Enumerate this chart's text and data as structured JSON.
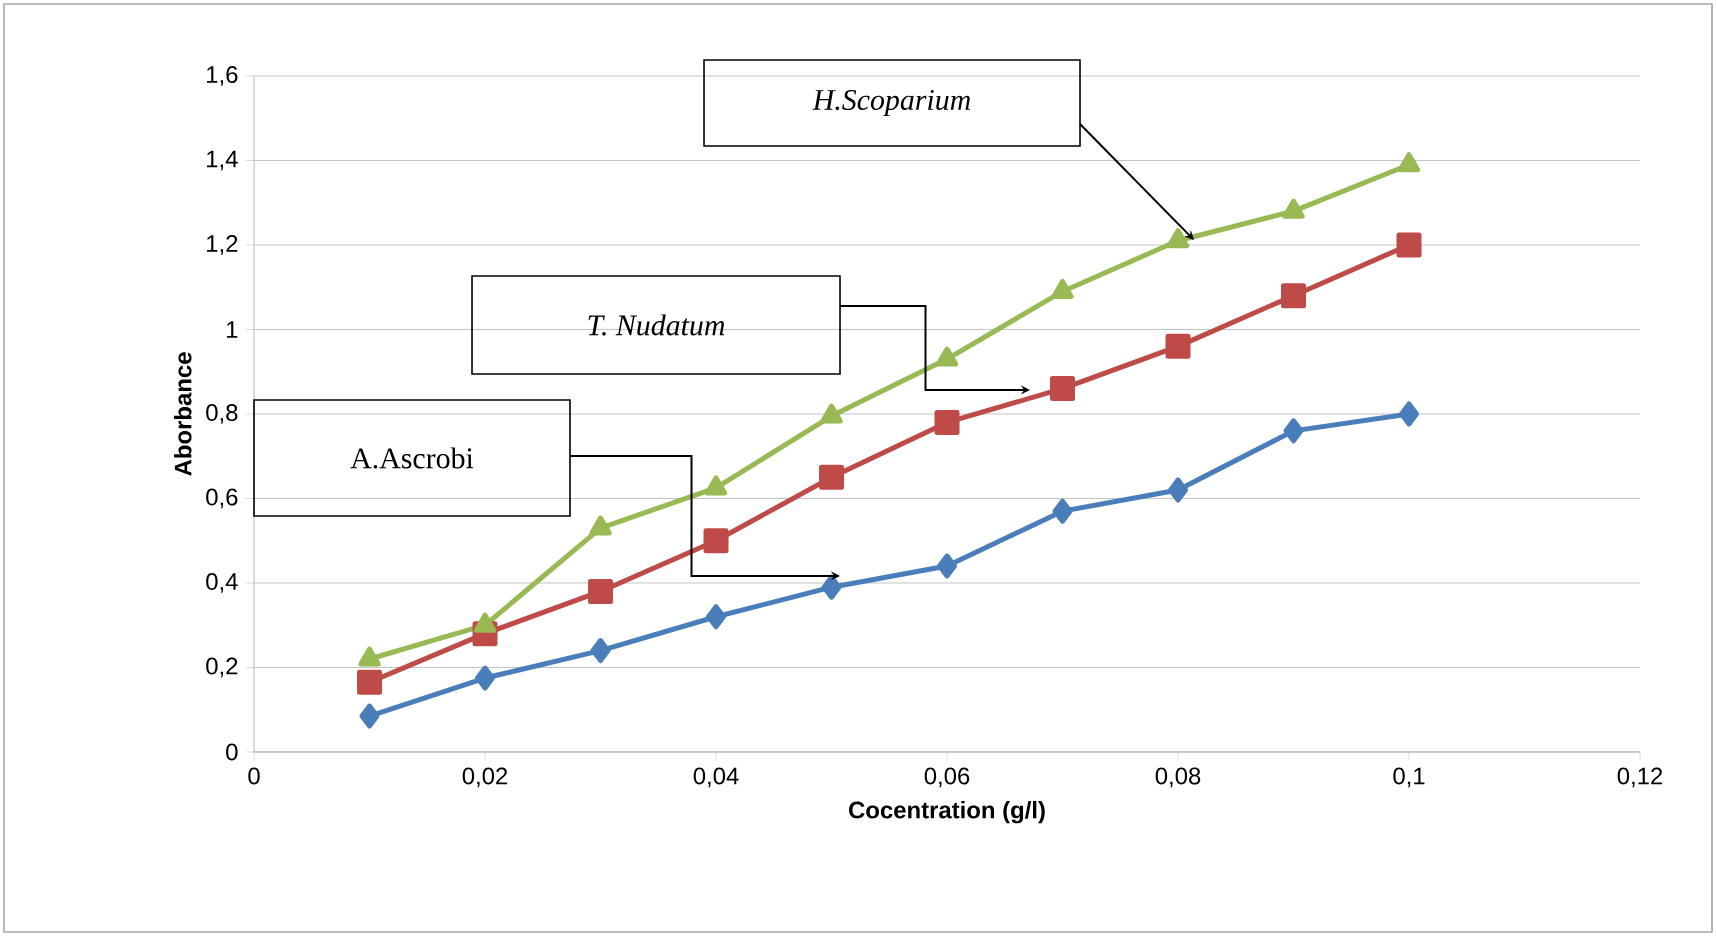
{
  "chart_data": {
    "type": "line",
    "xlabel": "Cocentration (g/l)",
    "ylabel": "Aborbance",
    "x": [
      0.01,
      0.02,
      0.03,
      0.04,
      0.05,
      0.06,
      0.07,
      0.08,
      0.09,
      0.1
    ],
    "series": [
      {
        "color": "#4a7ebb",
        "marker": "diamond",
        "values": [
          0.085,
          0.175,
          0.24,
          0.32,
          0.39,
          0.44,
          0.57,
          0.62,
          0.76,
          0.8
        ]
      },
      {
        "color": "#be4b48",
        "marker": "square",
        "values": [
          0.165,
          0.28,
          0.38,
          0.5,
          0.65,
          0.78,
          0.86,
          0.96,
          1.08,
          1.2
        ]
      },
      {
        "color": "#98b954",
        "marker": "triangle",
        "values": [
          0.22,
          0.3,
          0.53,
          0.625,
          0.795,
          0.93,
          1.09,
          1.21,
          1.28,
          1.39
        ]
      }
    ],
    "xlim": [
      0,
      0.12
    ],
    "xticks": [
      0,
      {
        "value": 0.02,
        "label": "0,02"
      },
      {
        "value": 0.04,
        "label": "0,04"
      },
      {
        "value": 0.06,
        "label": "0,06"
      },
      {
        "value": 0.08,
        "label": "0,08"
      },
      {
        "value": 0.1,
        "label": "0,1"
      },
      {
        "value": 0.12,
        "label": "0,12"
      }
    ],
    "ylim": [
      0,
      1.6
    ],
    "yticks": [
      0,
      {
        "value": 0.2,
        "label": "0,2"
      },
      {
        "value": 0.4,
        "label": "0,4"
      },
      {
        "value": 0.6,
        "label": "0,6"
      },
      {
        "value": 0.8,
        "label": "0,8"
      },
      1,
      {
        "value": 1.2,
        "label": "1,2"
      },
      {
        "value": 1.4,
        "label": "1,4"
      },
      {
        "value": 1.6,
        "label": "1,6"
      }
    ],
    "grid": "y",
    "line_style": "solid",
    "annotations": [
      "H.Scoparium",
      "T. Nudatum",
      "A.Ascrobi"
    ]
  }
}
